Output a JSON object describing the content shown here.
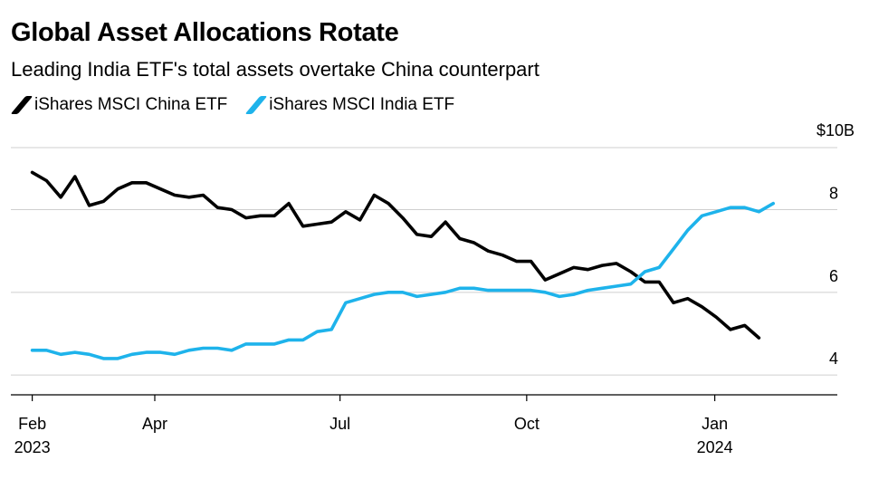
{
  "title": "Global Asset Allocations Rotate",
  "subtitle": "Leading India ETF's total assets overtake China counterpart",
  "chart_data": {
    "type": "line",
    "title": "Global Asset Allocations Rotate",
    "subtitle": "Leading India ETF's total assets overtake China counterpart",
    "xlabel": "",
    "ylabel": "",
    "unit_label": "$10B",
    "ylim": [
      3.5,
      9.5
    ],
    "grid": true,
    "legend": "top-left",
    "y_ticks": [
      4,
      6,
      8
    ],
    "x_ticks": [
      {
        "week": 0,
        "label": "Feb",
        "sublabel": "2023"
      },
      {
        "week": 8.6,
        "label": "Apr",
        "sublabel": ""
      },
      {
        "week": 21.6,
        "label": "Jul",
        "sublabel": ""
      },
      {
        "week": 34.7,
        "label": "Oct",
        "sublabel": ""
      },
      {
        "week": 47.9,
        "label": "Jan",
        "sublabel": "2024"
      }
    ],
    "x_range": [
      -1.5,
      56.5
    ],
    "series": [
      {
        "name": "iShares MSCI China ETF",
        "color": "#000000",
        "x": [
          0,
          1,
          2,
          3,
          4,
          5,
          6,
          7,
          8,
          9,
          10,
          11,
          12,
          13,
          14,
          15,
          16,
          17,
          18,
          19,
          20,
          21,
          22,
          23,
          24,
          25,
          26,
          27,
          28,
          29,
          30,
          31,
          32,
          33,
          34,
          35,
          36,
          37,
          38,
          39,
          40,
          41,
          42,
          43,
          44,
          45,
          46,
          47,
          48,
          49,
          50,
          51,
          52
        ],
        "values": [
          8.9,
          8.7,
          8.3,
          8.8,
          8.1,
          8.2,
          8.5,
          8.65,
          8.65,
          8.5,
          8.35,
          8.3,
          8.35,
          8.05,
          8.0,
          7.8,
          7.85,
          7.85,
          8.15,
          7.6,
          7.65,
          7.7,
          7.95,
          7.75,
          8.35,
          8.15,
          7.8,
          7.4,
          7.35,
          7.7,
          7.3,
          7.2,
          7.0,
          6.9,
          6.75,
          6.75,
          6.3,
          6.45,
          6.6,
          6.55,
          6.65,
          6.7,
          6.5,
          6.25,
          6.25,
          5.75,
          5.85,
          5.65,
          5.4,
          5.1,
          5.2,
          4.9,
          null
        ]
      },
      {
        "name": "iShares MSCI India ETF",
        "color": "#1EB3EB",
        "x": [
          0,
          1,
          2,
          3,
          4,
          5,
          6,
          7,
          8,
          9,
          10,
          11,
          12,
          13,
          14,
          15,
          16,
          17,
          18,
          19,
          20,
          21,
          22,
          23,
          24,
          25,
          26,
          27,
          28,
          29,
          30,
          31,
          32,
          33,
          34,
          35,
          36,
          37,
          38,
          39,
          40,
          41,
          42,
          43,
          44,
          45,
          46,
          47,
          48,
          49,
          50,
          51,
          52
        ],
        "values": [
          4.6,
          4.6,
          4.5,
          4.55,
          4.5,
          4.4,
          4.4,
          4.5,
          4.55,
          4.55,
          4.5,
          4.6,
          4.65,
          4.65,
          4.6,
          4.75,
          4.75,
          4.75,
          4.85,
          4.85,
          5.05,
          5.1,
          5.75,
          5.85,
          5.95,
          6.0,
          6.0,
          5.9,
          5.95,
          6.0,
          6.1,
          6.1,
          6.05,
          6.05,
          6.05,
          6.05,
          6.0,
          5.9,
          5.95,
          6.05,
          6.1,
          6.15,
          6.2,
          6.5,
          6.6,
          7.05,
          7.5,
          7.85,
          7.95,
          8.05,
          8.05,
          7.95,
          8.15
        ]
      }
    ]
  }
}
